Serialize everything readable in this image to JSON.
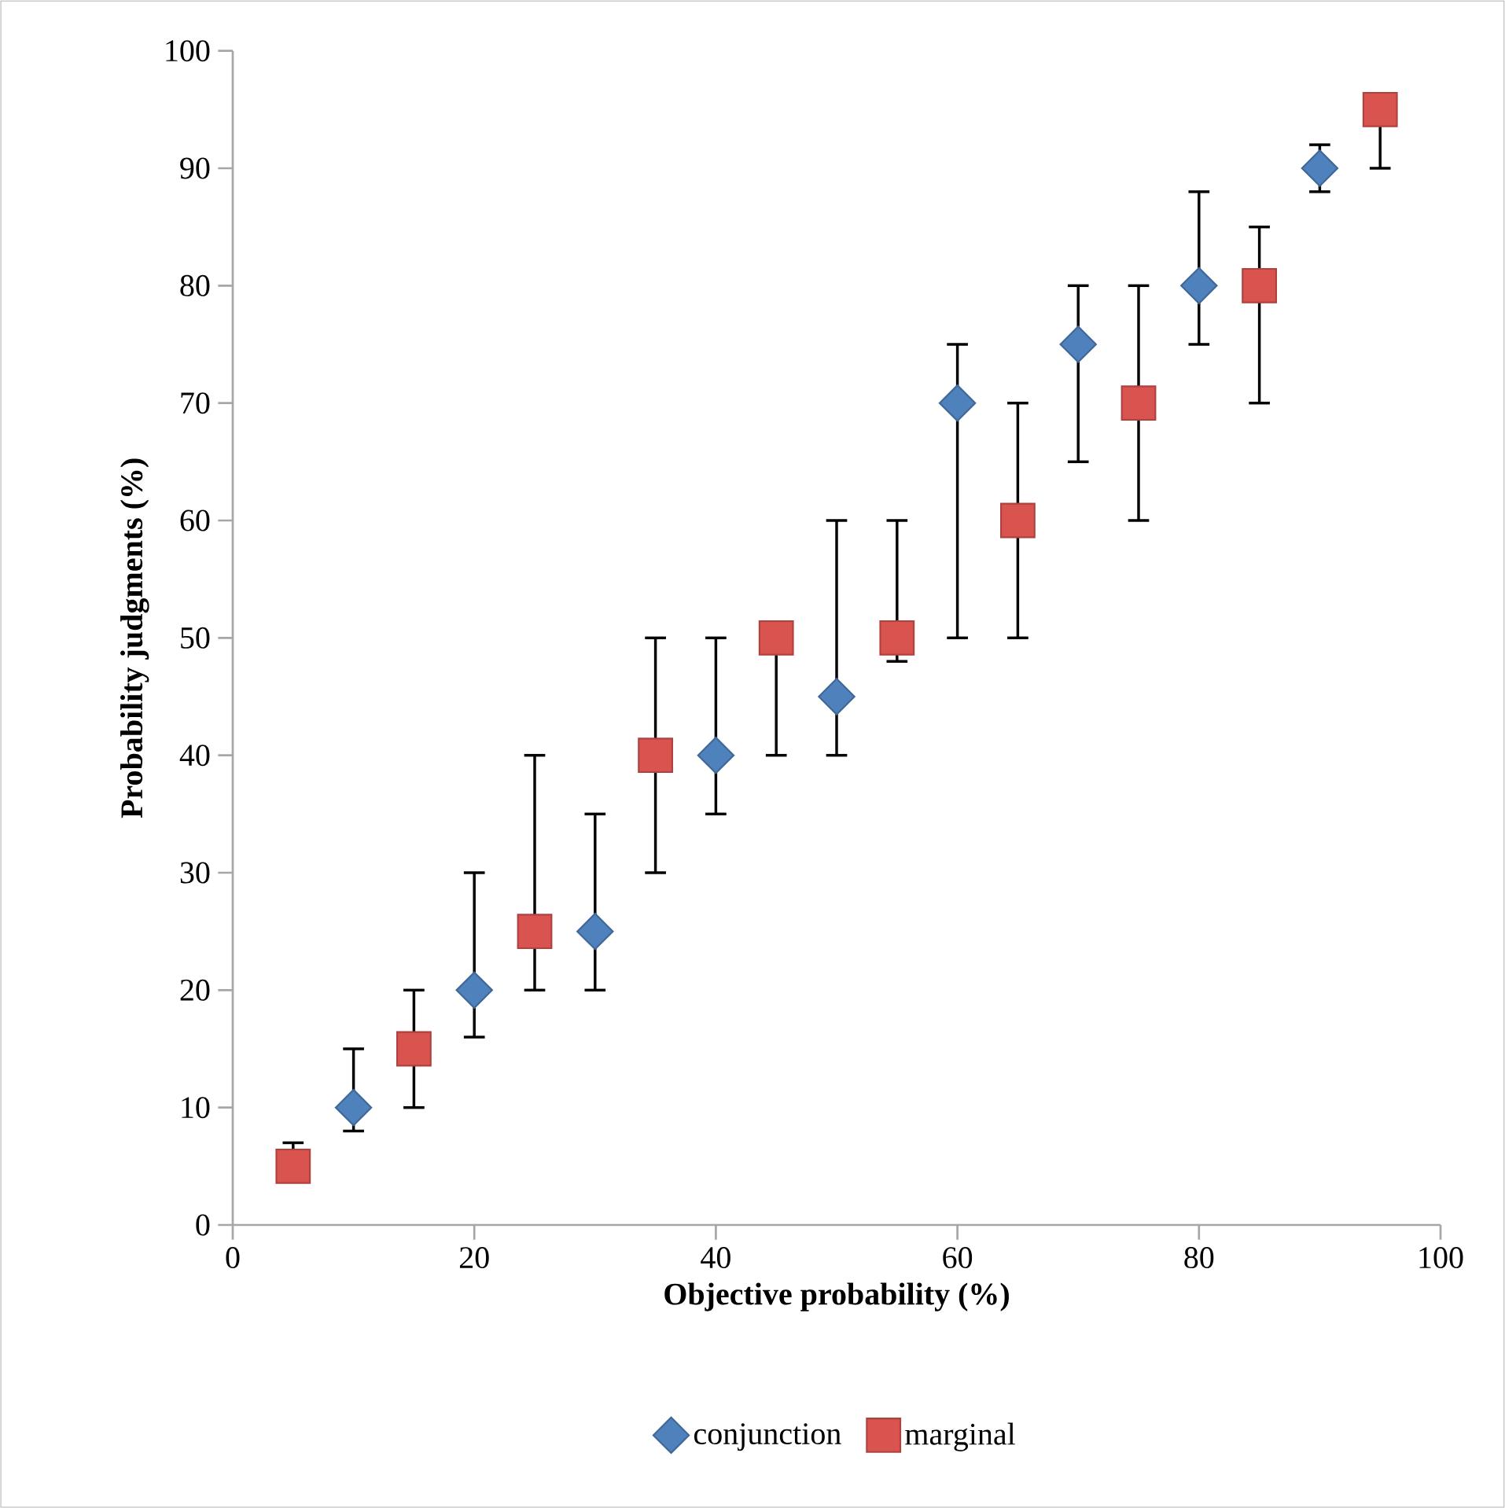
{
  "chart_data": {
    "type": "scatter",
    "xlabel": "Objective probability (%)",
    "ylabel": "Probability judgments (%)",
    "xlim": [
      0,
      100
    ],
    "xticks": [
      0,
      20,
      40,
      60,
      80,
      100
    ],
    "ylim": [
      0,
      100
    ],
    "yticks": [
      0,
      10,
      20,
      30,
      40,
      50,
      60,
      70,
      80,
      90,
      100
    ],
    "grid": false,
    "legend": "bottom",
    "series": [
      {
        "name": "conjunction",
        "color": "#4f81bd",
        "marker": "diamond",
        "x": [
          10,
          20,
          30,
          40,
          50,
          60,
          70,
          80,
          90
        ],
        "values": [
          10,
          20,
          25,
          40,
          45,
          70,
          75,
          80,
          90
        ],
        "errors": [
          [
            8,
            15
          ],
          [
            16,
            30
          ],
          [
            20,
            35
          ],
          [
            35,
            50
          ],
          [
            40,
            60
          ],
          [
            50,
            75
          ],
          [
            65,
            80
          ],
          [
            75,
            88
          ],
          [
            88,
            92
          ]
        ]
      },
      {
        "name": "marginal",
        "color": "#d9534f",
        "marker": "square",
        "x": [
          5,
          15,
          25,
          35,
          45,
          55,
          65,
          75,
          85,
          95
        ],
        "values": [
          5,
          15,
          25,
          40,
          50,
          50,
          60,
          70,
          80,
          95
        ],
        "errors": [
          [
            5,
            7
          ],
          [
            10,
            20
          ],
          [
            20,
            40
          ],
          [
            30,
            50
          ],
          [
            40,
            50
          ],
          [
            48,
            60
          ],
          [
            50,
            70
          ],
          [
            60,
            80
          ],
          [
            70,
            85
          ],
          [
            90,
            95
          ]
        ]
      }
    ]
  }
}
